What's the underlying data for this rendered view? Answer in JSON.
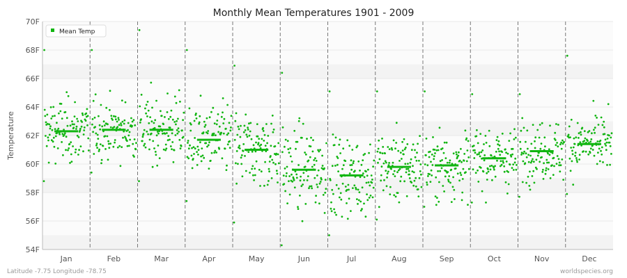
{
  "chart_data": {
    "type": "scatter",
    "title": "Monthly Mean Temperatures 1901 - 2009",
    "xlabel": "",
    "ylabel": "Temperature",
    "categories": [
      "Jan",
      "Feb",
      "Mar",
      "Apr",
      "May",
      "Jun",
      "Jul",
      "Aug",
      "Sep",
      "Oct",
      "Nov",
      "Dec"
    ],
    "y_ticks": [
      "54F",
      "56F",
      "58F",
      "60F",
      "62F",
      "64F",
      "66F",
      "68F",
      "70F"
    ],
    "ylim": [
      54,
      70
    ],
    "grid": true,
    "legend": {
      "position": "top-left",
      "label": "Mean Temp"
    },
    "series": [
      {
        "name": "Mean Temp",
        "color": "#11b511",
        "monthly_means": [
          62.3,
          62.4,
          62.4,
          61.7,
          61.0,
          59.6,
          59.2,
          59.8,
          59.9,
          60.4,
          60.9,
          61.4
        ],
        "monthly_min": [
          58.8,
          59.4,
          58.8,
          57.4,
          55.9,
          54.3,
          55.0,
          56.1,
          57.0,
          57.3,
          57.7,
          57.9
        ],
        "monthly_max": [
          68.0,
          68.0,
          69.4,
          68.0,
          66.9,
          66.4,
          65.1,
          65.1,
          65.1,
          64.9,
          64.9,
          67.6
        ],
        "monthly_spread": [
          1.6,
          1.4,
          1.7,
          1.7,
          1.9,
          2.0,
          1.9,
          1.7,
          1.6,
          1.5,
          1.4,
          1.5
        ],
        "points_per_month": 109
      }
    ],
    "footer_left": "Latitude -7.75 Longitude -78.75",
    "footer_right": "worldspecies.org"
  }
}
